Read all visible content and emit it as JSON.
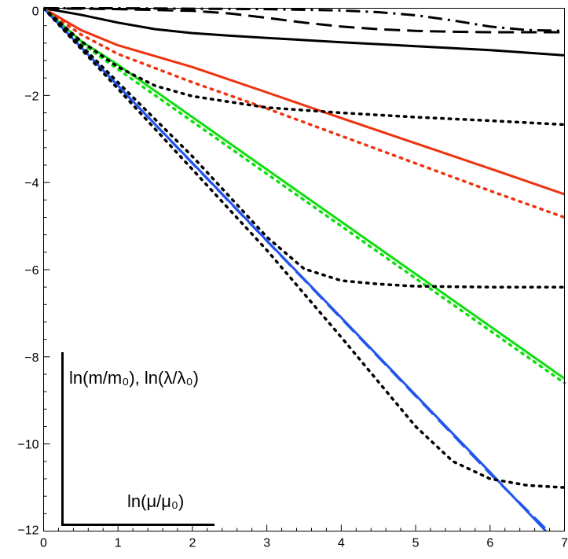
{
  "chart_data": {
    "type": "line",
    "title": "",
    "xlabel": "ln(μ/μ₀)",
    "ylabel": "ln(m/m₀), ln(λ/λ₀)",
    "xlim": [
      0,
      7
    ],
    "ylim": [
      -12,
      0
    ],
    "x_ticks": [
      "0",
      "1",
      "2",
      "3",
      "4",
      "5",
      "6",
      "7"
    ],
    "y_ticks": [
      "0",
      "−2",
      "−4",
      "−6",
      "−8",
      "−10",
      "−12"
    ],
    "x_tick_values": [
      0,
      1,
      2,
      3,
      4,
      5,
      6,
      7
    ],
    "y_tick_values": [
      0,
      -2,
      -4,
      -6,
      -8,
      -10,
      -12
    ],
    "colors": {
      "black": "#000000",
      "red": "#ee3311",
      "green": "#11dd11",
      "blue": "#2255ee"
    },
    "series": [
      {
        "name": "black-solid",
        "color": "black",
        "style": "solid",
        "x": [
          0,
          0.5,
          1,
          1.5,
          2,
          2.5,
          3,
          4,
          5,
          6,
          7
        ],
        "y": [
          0,
          -0.15,
          -0.33,
          -0.48,
          -0.57,
          -0.63,
          -0.68,
          -0.78,
          -0.87,
          -0.96,
          -1.08
        ]
      },
      {
        "name": "black-dashed",
        "color": "black",
        "style": "dashed",
        "x": [
          0,
          1,
          2,
          2.5,
          3,
          3.5,
          4,
          4.5,
          5,
          5.5,
          6,
          7
        ],
        "y": [
          0,
          -0.02,
          -0.06,
          -0.12,
          -0.22,
          -0.33,
          -0.42,
          -0.48,
          -0.52,
          -0.54,
          -0.55,
          -0.55
        ]
      },
      {
        "name": "black-dashdot",
        "color": "black",
        "style": "dashdot",
        "x": [
          0,
          1,
          2,
          3,
          4,
          4.5,
          5,
          5.5,
          6,
          6.5,
          7
        ],
        "y": [
          0,
          0,
          -0.01,
          -0.02,
          -0.05,
          -0.09,
          -0.16,
          -0.28,
          -0.42,
          -0.5,
          -0.52
        ]
      },
      {
        "name": "red-solid",
        "color": "red",
        "style": "solid",
        "x": [
          0,
          0.5,
          1,
          2,
          3,
          4,
          5,
          6,
          7
        ],
        "y": [
          0,
          -0.5,
          -0.85,
          -1.35,
          -1.93,
          -2.52,
          -3.1,
          -3.68,
          -4.27
        ]
      },
      {
        "name": "red-dotted",
        "color": "red",
        "style": "dotted",
        "x": [
          0,
          0.5,
          1,
          2,
          3,
          4,
          5,
          6,
          7
        ],
        "y": [
          0,
          -0.6,
          -1.05,
          -1.7,
          -2.3,
          -2.93,
          -3.56,
          -4.19,
          -4.8
        ]
      },
      {
        "name": "green-solid",
        "color": "green",
        "style": "solid",
        "x": [
          0,
          0.5,
          1,
          2,
          3,
          4,
          5,
          6,
          7
        ],
        "y": [
          0,
          -0.75,
          -1.3,
          -2.5,
          -3.7,
          -4.9,
          -6.1,
          -7.3,
          -8.5
        ]
      },
      {
        "name": "green-dotted",
        "color": "green",
        "style": "dotted",
        "x": [
          0,
          0.5,
          1,
          2,
          3,
          4,
          5,
          6,
          7
        ],
        "y": [
          0,
          -0.8,
          -1.4,
          -2.6,
          -3.8,
          -5.0,
          -6.2,
          -7.4,
          -8.6
        ]
      },
      {
        "name": "blue-solid",
        "color": "blue",
        "style": "solid",
        "x": [
          0,
          1,
          2,
          3,
          4,
          5,
          6,
          6.75
        ],
        "y": [
          0,
          -1.78,
          -3.55,
          -5.33,
          -7.1,
          -8.88,
          -10.65,
          -12.0
        ]
      },
      {
        "name": "blue-dashed",
        "color": "blue",
        "style": "dashed",
        "x": [
          0,
          1,
          2,
          3,
          4,
          5,
          6,
          6.78
        ],
        "y": [
          0,
          -1.78,
          -3.56,
          -5.34,
          -7.12,
          -8.9,
          -10.68,
          -12.0
        ]
      },
      {
        "name": "black-dotted-1",
        "color": "black",
        "style": "dotted",
        "x": [
          0,
          0.5,
          1,
          1.5,
          2,
          2.5,
          3,
          4,
          5,
          6,
          7
        ],
        "y": [
          0,
          -0.75,
          -1.35,
          -1.78,
          -2.02,
          -2.15,
          -2.28,
          -2.4,
          -2.5,
          -2.58,
          -2.67
        ]
      },
      {
        "name": "black-dotted-2",
        "color": "black",
        "style": "dotted",
        "x": [
          0,
          1,
          2,
          3,
          3.5,
          4,
          4.5,
          5,
          6,
          7
        ],
        "y": [
          0,
          -1.7,
          -3.4,
          -5.25,
          -5.98,
          -6.25,
          -6.33,
          -6.38,
          -6.4,
          -6.4
        ]
      },
      {
        "name": "black-dotted-3",
        "color": "black",
        "style": "dotted",
        "x": [
          0,
          1,
          2,
          3,
          4,
          5,
          5.5,
          6,
          6.5,
          7
        ],
        "y": [
          0,
          -1.85,
          -3.7,
          -5.55,
          -7.55,
          -9.6,
          -10.4,
          -10.8,
          -10.95,
          -11.0
        ]
      }
    ]
  }
}
